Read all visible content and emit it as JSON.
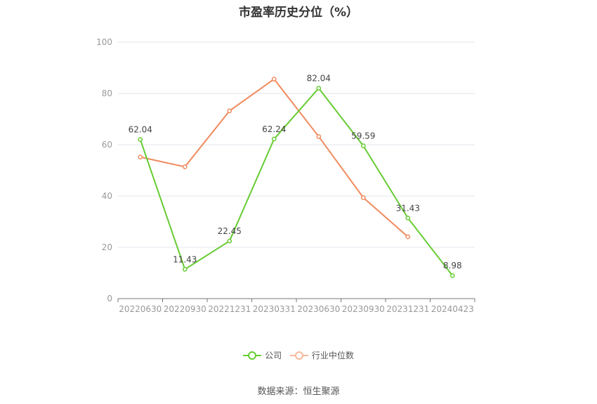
{
  "chart_data": {
    "type": "line",
    "title": "市盈率历史分位（%）",
    "categories": [
      "20220630",
      "20220930",
      "20221231",
      "20230331",
      "20230630",
      "20230930",
      "20231231",
      "20240423"
    ],
    "series": [
      {
        "name": "公司",
        "color": "#66cc33",
        "values": [
          62.04,
          11.43,
          22.45,
          62.24,
          82.04,
          59.59,
          31.43,
          8.98
        ],
        "labels": [
          "62.04",
          "11.43",
          "22.45",
          "62.24",
          "82.04",
          "59.59",
          "31.43",
          "8.98"
        ]
      },
      {
        "name": "行业中位数",
        "color": "#f08a5d",
        "values": [
          55.2,
          51.4,
          73.2,
          85.6,
          63.2,
          39.4,
          24.1,
          null
        ]
      }
    ],
    "yticks": [
      "0",
      "20",
      "40",
      "60",
      "80",
      "100"
    ],
    "ylim": [
      0,
      100
    ],
    "grid": true,
    "legend": "bottom"
  },
  "source": "数据来源：恒生聚源"
}
